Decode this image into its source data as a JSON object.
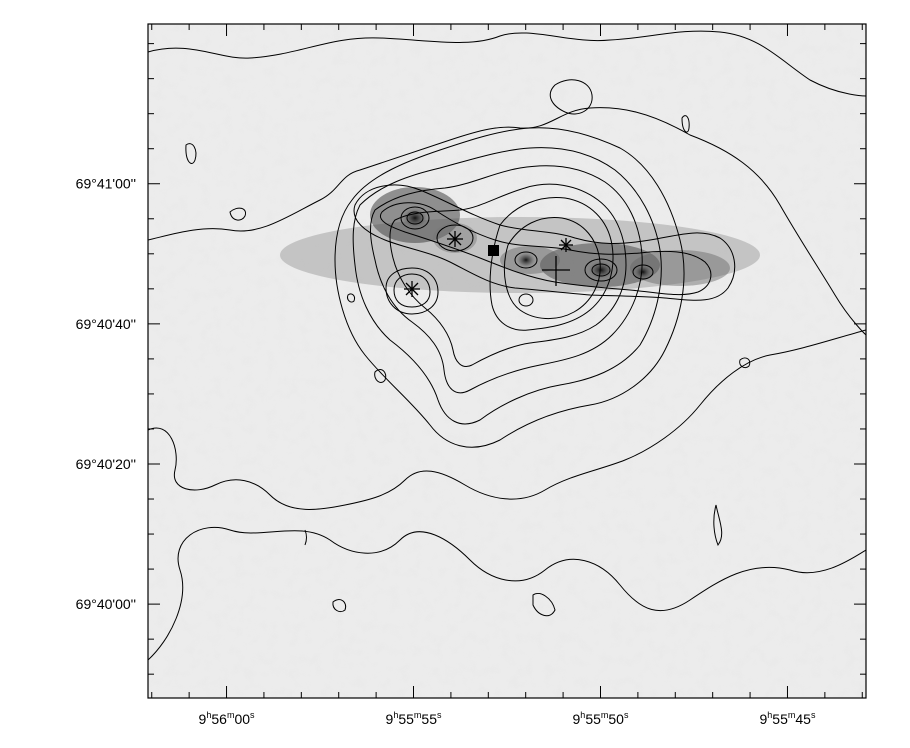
{
  "chart_data": {
    "type": "contour",
    "title": "",
    "xlabel": "",
    "ylabel": "",
    "x_axis": {
      "coordinate": "right_ascension",
      "direction": "decreasing_to_right",
      "tick_labels": [
        {
          "h": "9",
          "m": "56",
          "s": "00",
          "ra_s": 960
        },
        {
          "h": "9",
          "m": "55",
          "s": "55",
          "ra_s": 955
        },
        {
          "h": "9",
          "m": "55",
          "s": "50",
          "ra_s": 950
        },
        {
          "h": "9",
          "m": "55",
          "s": "45",
          "ra_s": 945
        }
      ],
      "range_ra_s": [
        962.1,
        942.9
      ],
      "minor_step_s": 1
    },
    "y_axis": {
      "coordinate": "declination",
      "tick_labels": [
        "69°40'00''",
        "69°40'20''",
        "69°40'40''",
        "69°41'00''"
      ],
      "tick_values_arcsec": [
        0,
        20,
        40,
        60
      ],
      "range_arcsec": [
        -13.4,
        82.8
      ],
      "minor_step_arcsec": 5
    },
    "background": "greyscale_image",
    "markers": [
      {
        "type": "asterisk",
        "ra_s": 953.0,
        "dec_arcsec": 48.5
      },
      {
        "type": "asterisk",
        "ra_s": 954.6,
        "dec_arcsec": 41.5
      },
      {
        "type": "asterisk",
        "ra_s": 950.3,
        "dec_arcsec": 47.8
      },
      {
        "type": "square",
        "ra_s": 952.2,
        "dec_arcsec": 47.0
      },
      {
        "type": "cross",
        "ra_s": 950.6,
        "dec_arcsec": 44.3
      }
    ],
    "colors": {
      "contour": "#000000",
      "background_low": "#f2f2f2",
      "background_high": "#1a1a1a",
      "frame": "#000000"
    }
  }
}
